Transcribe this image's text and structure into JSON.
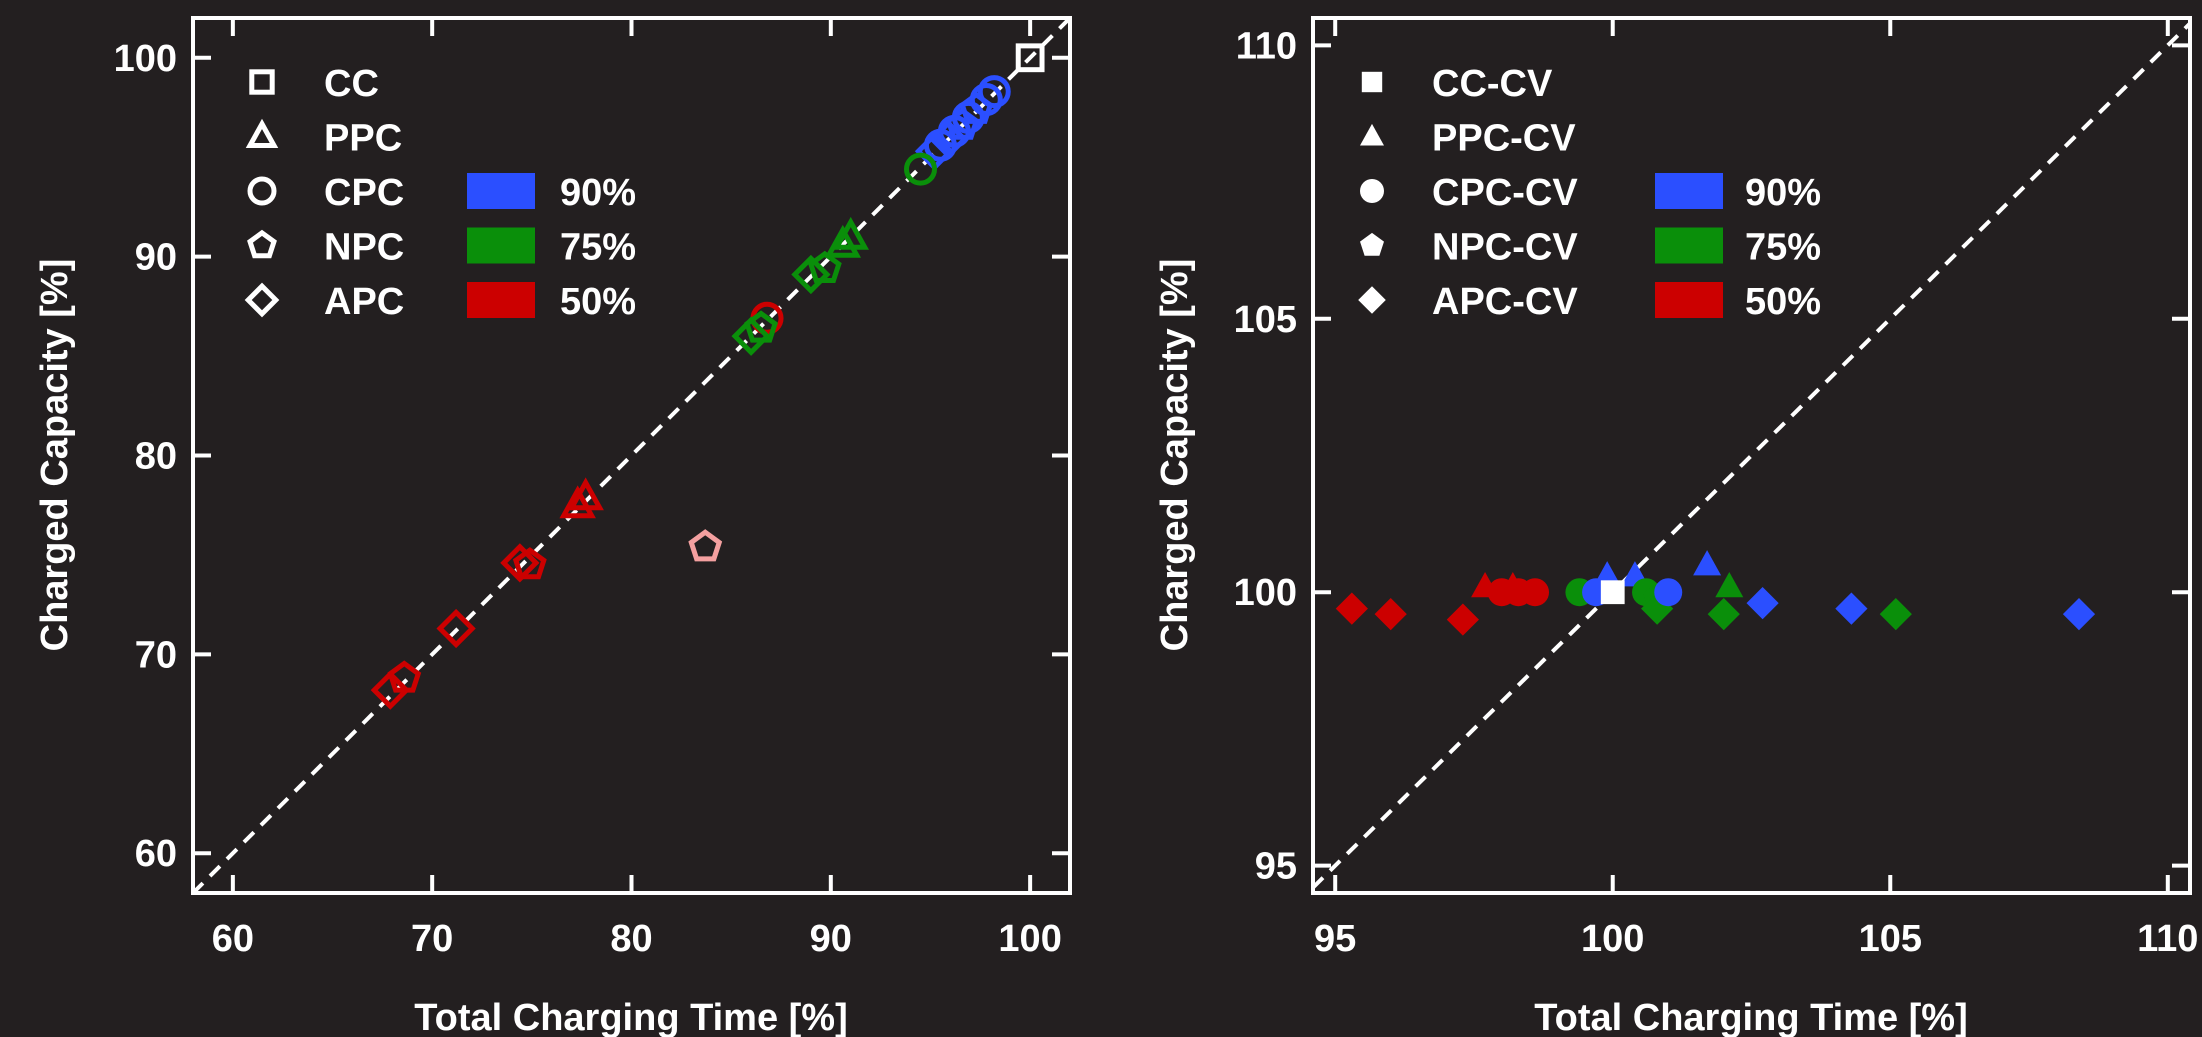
{
  "colors": {
    "background": "#231f20",
    "axes": "#ffffff",
    "blue": "#2b4fff",
    "green": "#0a8f0a",
    "red": "#cc0000",
    "pink": "#f4a0a0",
    "white": "#ffffff"
  },
  "chart_data": [
    {
      "type": "scatter",
      "xlabel": "Total Charging Time [%]",
      "ylabel": "Charged Capacity [%]",
      "xlim": [
        58,
        102
      ],
      "ylim": [
        58,
        102
      ],
      "xticks": [
        60,
        70,
        80,
        90,
        100
      ],
      "yticks": [
        60,
        70,
        80,
        90,
        100
      ],
      "reference_line": "y = x (dashed)",
      "marker_fill": "hollow",
      "legend_shapes": [
        {
          "label": "CC",
          "shape": "square"
        },
        {
          "label": "PPC",
          "shape": "triangle"
        },
        {
          "label": "CPC",
          "shape": "circle"
        },
        {
          "label": "NPC",
          "shape": "pentagon"
        },
        {
          "label": "APC",
          "shape": "diamond"
        }
      ],
      "legend_colors": [
        {
          "label": "90%",
          "color": "blue"
        },
        {
          "label": "75%",
          "color": "green"
        },
        {
          "label": "50%",
          "color": "red"
        }
      ],
      "points": [
        {
          "x": 100,
          "y": 100,
          "shape": "square",
          "color": "white"
        },
        {
          "x": 98.2,
          "y": 98.3,
          "shape": "circle",
          "color": "blue"
        },
        {
          "x": 97.8,
          "y": 97.9,
          "shape": "circle",
          "color": "blue"
        },
        {
          "x": 97.3,
          "y": 97.4,
          "shape": "pentagon",
          "color": "blue"
        },
        {
          "x": 96.9,
          "y": 97.0,
          "shape": "circle",
          "color": "blue"
        },
        {
          "x": 96.6,
          "y": 96.6,
          "shape": "pentagon",
          "color": "blue"
        },
        {
          "x": 96.2,
          "y": 96.3,
          "shape": "circle",
          "color": "blue"
        },
        {
          "x": 95.9,
          "y": 95.9,
          "shape": "diamond",
          "color": "blue"
        },
        {
          "x": 95.5,
          "y": 95.6,
          "shape": "circle",
          "color": "blue"
        },
        {
          "x": 95.2,
          "y": 95.3,
          "shape": "diamond",
          "color": "blue"
        },
        {
          "x": 94.5,
          "y": 94.4,
          "shape": "circle",
          "color": "green"
        },
        {
          "x": 91.0,
          "y": 91.0,
          "shape": "triangle",
          "color": "green"
        },
        {
          "x": 90.6,
          "y": 90.6,
          "shape": "triangle",
          "color": "green"
        },
        {
          "x": 89.7,
          "y": 89.4,
          "shape": "pentagon",
          "color": "green"
        },
        {
          "x": 89.0,
          "y": 89.1,
          "shape": "diamond",
          "color": "green"
        },
        {
          "x": 86.8,
          "y": 86.9,
          "shape": "circle",
          "color": "red"
        },
        {
          "x": 86.5,
          "y": 86.4,
          "shape": "pentagon",
          "color": "green"
        },
        {
          "x": 86.0,
          "y": 86.0,
          "shape": "diamond",
          "color": "green"
        },
        {
          "x": 77.7,
          "y": 77.9,
          "shape": "triangle",
          "color": "red"
        },
        {
          "x": 77.3,
          "y": 77.5,
          "shape": "triangle",
          "color": "red"
        },
        {
          "x": 74.9,
          "y": 74.5,
          "shape": "pentagon",
          "color": "red"
        },
        {
          "x": 74.4,
          "y": 74.6,
          "shape": "diamond",
          "color": "red"
        },
        {
          "x": 83.7,
          "y": 75.4,
          "shape": "pentagon",
          "color": "pink"
        },
        {
          "x": 71.2,
          "y": 71.3,
          "shape": "diamond",
          "color": "red"
        },
        {
          "x": 68.6,
          "y": 68.8,
          "shape": "pentagon",
          "color": "red"
        },
        {
          "x": 67.9,
          "y": 68.2,
          "shape": "diamond",
          "color": "red"
        }
      ]
    },
    {
      "type": "scatter",
      "xlabel": "Total Charging Time [%]",
      "ylabel": "Charged Capacity [%]",
      "xlim": [
        94.6,
        110.4
      ],
      "ylim": [
        94.5,
        110.5
      ],
      "xticks": [
        95,
        100,
        105,
        110
      ],
      "yticks": [
        95,
        100,
        105,
        110
      ],
      "reference_line": "y = x (dashed)",
      "marker_fill": "filled",
      "legend_shapes": [
        {
          "label": "CC-CV",
          "shape": "square"
        },
        {
          "label": "PPC-CV",
          "shape": "triangle"
        },
        {
          "label": "CPC-CV",
          "shape": "circle"
        },
        {
          "label": "NPC-CV",
          "shape": "pentagon"
        },
        {
          "label": "APC-CV",
          "shape": "diamond"
        }
      ],
      "legend_colors": [
        {
          "label": "90%",
          "color": "blue"
        },
        {
          "label": "75%",
          "color": "green"
        },
        {
          "label": "50%",
          "color": "red"
        }
      ],
      "points": [
        {
          "x": 95.3,
          "y": 99.7,
          "shape": "diamond",
          "color": "red"
        },
        {
          "x": 96.0,
          "y": 99.6,
          "shape": "diamond",
          "color": "red"
        },
        {
          "x": 97.3,
          "y": 99.5,
          "shape": "diamond",
          "color": "red"
        },
        {
          "x": 97.7,
          "y": 100.1,
          "shape": "triangle",
          "color": "red"
        },
        {
          "x": 98.2,
          "y": 100.1,
          "shape": "triangle",
          "color": "red"
        },
        {
          "x": 98.0,
          "y": 100.0,
          "shape": "circle",
          "color": "red"
        },
        {
          "x": 98.3,
          "y": 100.0,
          "shape": "circle",
          "color": "red"
        },
        {
          "x": 98.6,
          "y": 100.0,
          "shape": "circle",
          "color": "red"
        },
        {
          "x": 99.4,
          "y": 100.0,
          "shape": "circle",
          "color": "green"
        },
        {
          "x": 99.9,
          "y": 100.3,
          "shape": "triangle",
          "color": "blue"
        },
        {
          "x": 100.4,
          "y": 100.3,
          "shape": "triangle",
          "color": "blue"
        },
        {
          "x": 100.6,
          "y": 100.0,
          "shape": "circle",
          "color": "green"
        },
        {
          "x": 100.8,
          "y": 99.9,
          "shape": "pentagon",
          "color": "green"
        },
        {
          "x": 100.8,
          "y": 99.7,
          "shape": "diamond",
          "color": "green"
        },
        {
          "x": 101.0,
          "y": 100.0,
          "shape": "circle",
          "color": "blue"
        },
        {
          "x": 99.7,
          "y": 100.0,
          "shape": "circle",
          "color": "blue"
        },
        {
          "x": 101.7,
          "y": 100.5,
          "shape": "triangle",
          "color": "blue"
        },
        {
          "x": 102.1,
          "y": 100.1,
          "shape": "triangle",
          "color": "green"
        },
        {
          "x": 102.0,
          "y": 99.6,
          "shape": "diamond",
          "color": "green"
        },
        {
          "x": 102.7,
          "y": 99.8,
          "shape": "diamond",
          "color": "blue"
        },
        {
          "x": 104.3,
          "y": 99.7,
          "shape": "diamond",
          "color": "blue"
        },
        {
          "x": 105.1,
          "y": 99.6,
          "shape": "diamond",
          "color": "green"
        },
        {
          "x": 108.4,
          "y": 99.6,
          "shape": "diamond",
          "color": "blue"
        },
        {
          "x": 100.0,
          "y": 100.0,
          "shape": "square",
          "color": "white"
        }
      ]
    }
  ]
}
